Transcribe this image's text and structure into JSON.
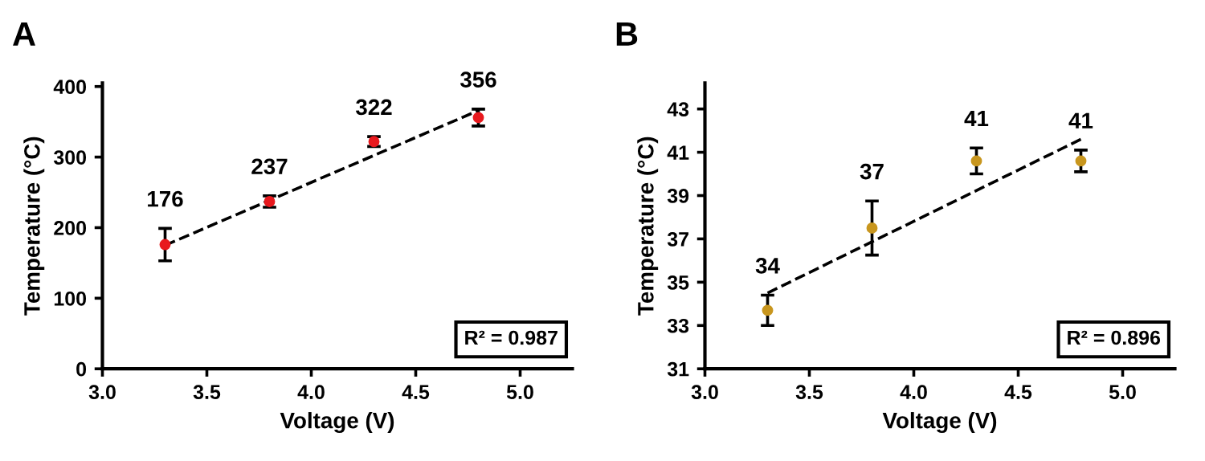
{
  "chart_data": [
    {
      "type": "scatter",
      "title": "A",
      "xlabel": "Voltage (V)",
      "ylabel": "Temperature (°C)",
      "xlim": [
        3.0,
        5.25
      ],
      "xticks": [
        {
          "value": 3.0,
          "label": "3.0"
        },
        {
          "value": 3.5,
          "label": "3.5"
        },
        {
          "value": 4.0,
          "label": "4.0"
        },
        {
          "value": 4.5,
          "label": "4.5"
        },
        {
          "value": 5.0,
          "label": "5.0"
        }
      ],
      "ylim": [
        0,
        405
      ],
      "yticks": [
        0,
        100,
        200,
        300,
        400
      ],
      "grid": false,
      "legend": false,
      "annotations": [
        "R² = 0.987"
      ],
      "series": [
        {
          "marker": "circle",
          "color": "#e8191e",
          "x": [
            3.3,
            3.8,
            4.3,
            4.8
          ],
          "values": [
            176,
            237,
            322,
            356
          ],
          "errors": [
            23,
            8,
            7,
            12
          ],
          "value_labels": [
            "176",
            "237",
            "322",
            "356"
          ]
        },
        {
          "type": "line",
          "marker": "none",
          "color": "#000000",
          "line_style": "dashed",
          "x": [
            3.3,
            4.8
          ],
          "values": [
            175,
            366
          ]
        }
      ]
    },
    {
      "type": "scatter",
      "title": "B",
      "xlabel": "Voltage (V)",
      "ylabel": "Temperature (°C)",
      "xlim": [
        3.0,
        5.25
      ],
      "xticks": [
        {
          "value": 3.0,
          "label": "3.0"
        },
        {
          "value": 3.5,
          "label": "3.5"
        },
        {
          "value": 4.0,
          "label": "4.0"
        },
        {
          "value": 4.5,
          "label": "4.5"
        },
        {
          "value": 5.0,
          "label": "5.0"
        }
      ],
      "ylim": [
        31,
        44.2
      ],
      "yticks": [
        31,
        33,
        35,
        37,
        39,
        41,
        43
      ],
      "grid": false,
      "legend": false,
      "annotations": [
        "R² = 0.896"
      ],
      "series": [
        {
          "marker": "circle",
          "color": "#c8961e",
          "x": [
            3.3,
            3.8,
            4.3,
            4.8
          ],
          "values": [
            33.7,
            37.5,
            40.6,
            40.6
          ],
          "errors": [
            0.7,
            1.25,
            0.6,
            0.5
          ],
          "value_labels": [
            "34",
            "37",
            "41",
            "41"
          ]
        },
        {
          "type": "line",
          "marker": "none",
          "color": "#000000",
          "line_style": "dashed",
          "x": [
            3.3,
            4.8
          ],
          "values": [
            34.5,
            41.6
          ]
        }
      ]
    }
  ]
}
